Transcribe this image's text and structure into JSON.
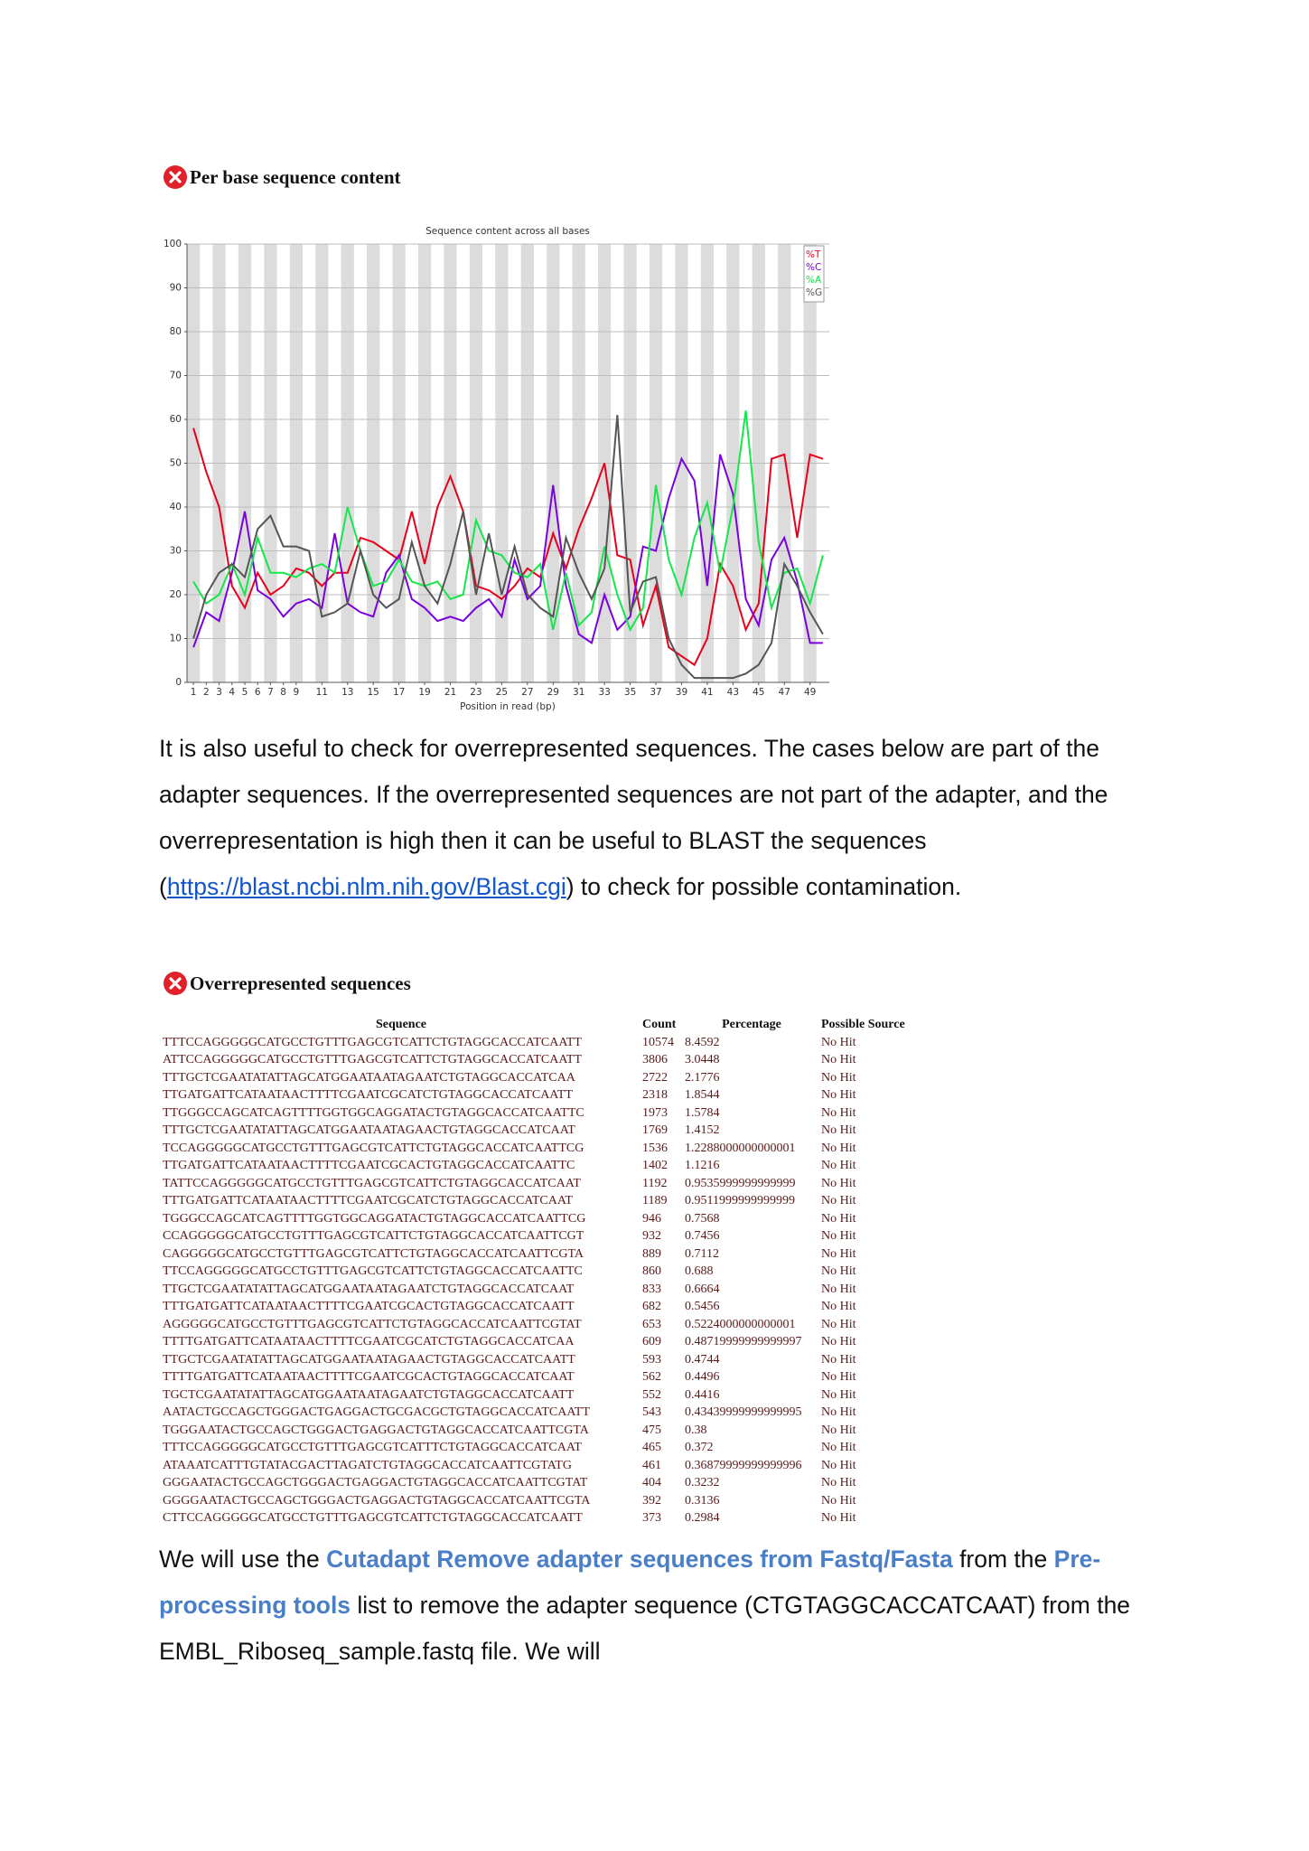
{
  "section1": {
    "title": "Per base sequence content"
  },
  "chart_data": {
    "type": "line",
    "title": "Sequence content across all bases",
    "x_label": "Position in read (bp)",
    "x": [
      1,
      2,
      3,
      4,
      5,
      6,
      7,
      8,
      9,
      10,
      11,
      12,
      13,
      14,
      15,
      16,
      17,
      18,
      19,
      20,
      21,
      22,
      23,
      24,
      25,
      26,
      27,
      28,
      29,
      30,
      31,
      32,
      33,
      34,
      35,
      36,
      37,
      38,
      39,
      40,
      41,
      42,
      43,
      44,
      45,
      46,
      47,
      48,
      49,
      50
    ],
    "xlim": [
      0.5,
      50.5
    ],
    "xticks": [
      1,
      2,
      3,
      4,
      5,
      6,
      7,
      8,
      9,
      11,
      13,
      15,
      17,
      19,
      21,
      23,
      25,
      27,
      29,
      31,
      33,
      35,
      37,
      39,
      41,
      43,
      45,
      47,
      49
    ],
    "ylim": [
      0,
      100
    ],
    "yticks": [
      0,
      10,
      20,
      30,
      40,
      50,
      60,
      70,
      80,
      90,
      100
    ],
    "grid": true,
    "legend": "upper right",
    "series": [
      {
        "name": "%T",
        "color": "#e8001c",
        "values": [
          58,
          48,
          40,
          22,
          17,
          25,
          20,
          22,
          26,
          25,
          22,
          25,
          25,
          33,
          32,
          30,
          28,
          39,
          27,
          40,
          47,
          39,
          22,
          21,
          19,
          22,
          26,
          24,
          34,
          26,
          35,
          42,
          50,
          29,
          28,
          13,
          22,
          8,
          6,
          4,
          10,
          27,
          22,
          12,
          18,
          51,
          52,
          33,
          52,
          51
        ]
      },
      {
        "name": "%C",
        "color": "#7a00e0",
        "values": [
          8,
          16,
          14,
          25,
          39,
          21,
          19,
          15,
          18,
          19,
          17,
          34,
          18,
          16,
          15,
          25,
          29,
          19,
          17,
          14,
          15,
          14,
          17,
          19,
          15,
          28,
          19,
          22,
          45,
          22,
          11,
          9,
          20,
          12,
          15,
          31,
          30,
          42,
          51,
          46,
          22,
          52,
          43,
          19,
          13,
          28,
          33,
          23,
          9,
          9
        ]
      },
      {
        "name": "%A",
        "color": "#13e84a",
        "values": [
          23,
          18,
          20,
          27,
          20,
          33,
          25,
          25,
          24,
          26,
          27,
          25,
          40,
          30,
          22,
          23,
          28,
          23,
          22,
          23,
          19,
          20,
          37,
          30,
          29,
          25,
          24,
          27,
          12,
          25,
          13,
          16,
          31,
          20,
          12,
          17,
          45,
          28,
          20,
          33,
          41,
          25,
          40,
          62,
          32,
          17,
          25,
          26,
          18,
          29
        ]
      },
      {
        "name": "%G",
        "color": "#555555",
        "values": [
          10,
          20,
          25,
          27,
          24,
          35,
          38,
          31,
          31,
          30,
          15,
          16,
          18,
          30,
          20,
          17,
          19,
          32,
          22,
          18,
          27,
          39,
          20,
          34,
          20,
          31,
          20,
          17,
          15,
          33,
          25,
          19,
          26,
          61,
          16,
          23,
          24,
          10,
          4,
          1,
          1,
          1,
          1,
          2,
          4,
          9,
          27,
          22,
          16,
          11
        ]
      }
    ]
  },
  "paragraph1": {
    "before": "It is also useful to check for overrepresented sequences. The cases below are part of the adapter sequences. If the overrepresented sequences are not part of the adapter, and the overrepresentation is high then it can be useful to BLAST the sequences (",
    "link": "https://blast.ncbi.nlm.nih.gov/Blast.cgi",
    "after": ") to check for possible contamination."
  },
  "section2": {
    "title": "Overrepresented sequences"
  },
  "table": {
    "header": [
      "Sequence",
      "Count",
      "Percentage",
      "Possible Source"
    ],
    "rows": [
      [
        "TTTCCAGGGGGCATGCCTGTTTGAGCGTCATTCTGTAGGCACCATCAATT",
        "10574",
        "8.4592",
        "No Hit"
      ],
      [
        "ATTCCAGGGGGCATGCCTGTTTGAGCGTCATTCTGTAGGCACCATCAATT",
        "3806",
        "3.0448",
        "No Hit"
      ],
      [
        "TTTGCTCGAATATATTAGCATGGAATAATAGAATCTGTAGGCACCATCAA",
        "2722",
        "2.1776",
        "No Hit"
      ],
      [
        "TTGATGATTCATAATAACTTTTCGAATCGCATCTGTAGGCACCATCAATT",
        "2318",
        "1.8544",
        "No Hit"
      ],
      [
        "TTGGGCCAGCATCAGTTTTGGTGGCAGGATACTGTAGGCACCATCAATTC",
        "1973",
        "1.5784",
        "No Hit"
      ],
      [
        "TTTGCTCGAATATATTAGCATGGAATAATAGAACTGTAGGCACCATCAAT",
        "1769",
        "1.4152",
        "No Hit"
      ],
      [
        "TCCAGGGGGCATGCCTGTTTGAGCGTCATTCTGTAGGCACCATCAATTCG",
        "1536",
        "1.2288000000000001",
        "No Hit"
      ],
      [
        "TTGATGATTCATAATAACTTTTCGAATCGCACTGTAGGCACCATCAATTC",
        "1402",
        "1.1216",
        "No Hit"
      ],
      [
        "TATTCCAGGGGGCATGCCTGTTTGAGCGTCATTCTGTAGGCACCATCAAT",
        "1192",
        "0.9535999999999999",
        "No Hit"
      ],
      [
        "TTTGATGATTCATAATAACTTTTCGAATCGCATCTGTAGGCACCATCAAT",
        "1189",
        "0.9511999999999999",
        "No Hit"
      ],
      [
        "TGGGCCAGCATCAGTTTTGGTGGCAGGATACTGTAGGCACCATCAATTCG",
        "946",
        "0.7568",
        "No Hit"
      ],
      [
        "CCAGGGGGCATGCCTGTTTGAGCGTCATTCTGTAGGCACCATCAATTCGT",
        "932",
        "0.7456",
        "No Hit"
      ],
      [
        "CAGGGGGCATGCCTGTTTGAGCGTCATTCTGTAGGCACCATCAATTCGTA",
        "889",
        "0.7112",
        "No Hit"
      ],
      [
        "TTCCAGGGGGCATGCCTGTTTGAGCGTCATTCTGTAGGCACCATCAATTC",
        "860",
        "0.688",
        "No Hit"
      ],
      [
        "TTGCTCGAATATATTAGCATGGAATAATAGAATCTGTAGGCACCATCAAT",
        "833",
        "0.6664",
        "No Hit"
      ],
      [
        "TTTGATGATTCATAATAACTTTTCGAATCGCACTGTAGGCACCATCAATT",
        "682",
        "0.5456",
        "No Hit"
      ],
      [
        "AGGGGGCATGCCTGTTTGAGCGTCATTCTGTAGGCACCATCAATTCGTAT",
        "653",
        "0.5224000000000001",
        "No Hit"
      ],
      [
        "TTTTGATGATTCATAATAACTTTTCGAATCGCATCTGTAGGCACCATCAA",
        "609",
        "0.48719999999999997",
        "No Hit"
      ],
      [
        "TTGCTCGAATATATTAGCATGGAATAATAGAACTGTAGGCACCATCAATT",
        "593",
        "0.4744",
        "No Hit"
      ],
      [
        "TTTTGATGATTCATAATAACTTTTCGAATCGCACTGTAGGCACCATCAAT",
        "562",
        "0.4496",
        "No Hit"
      ],
      [
        "TGCTCGAATATATTAGCATGGAATAATAGAATCTGTAGGCACCATCAATT",
        "552",
        "0.4416",
        "No Hit"
      ],
      [
        "AATACTGCCAGCTGGGACTGAGGACTGCGACGCTGTAGGCACCATCAATT",
        "543",
        "0.43439999999999995",
        "No Hit"
      ],
      [
        "TGGGAATACTGCCAGCTGGGACTGAGGACTGTAGGCACCATCAATTCGTA",
        "475",
        "0.38",
        "No Hit"
      ],
      [
        "TTTCCAGGGGGCATGCCTGTTTGAGCGTCATTTCTGTAGGCACCATCAAT",
        "465",
        "0.372",
        "No Hit"
      ],
      [
        "ATAAATCATTTGTATACGACTTAGATCTGTAGGCACCATCAATTCGTATG",
        "461",
        "0.36879999999999996",
        "No Hit"
      ],
      [
        "GGGAATACTGCCAGCTGGGACTGAGGACTGTAGGCACCATCAATTCGTAT",
        "404",
        "0.3232",
        "No Hit"
      ],
      [
        "GGGGAATACTGCCAGCTGGGACTGAGGACTGTAGGCACCATCAATTCGTA",
        "392",
        "0.3136",
        "No Hit"
      ],
      [
        "CTTCCAGGGGGCATGCCTGTTTGAGCGTCATTCTGTAGGCACCATCAATT",
        "373",
        "0.2984",
        "No Hit"
      ]
    ]
  },
  "paragraph2": {
    "part1": "We will use the ",
    "tool": "Cutadapt Remove adapter sequences from Fastq/Fasta",
    "part2": " from the ",
    "list": "Pre-processing tools",
    "part3": " list to remove the adapter sequence (CTGTAGGCACCATCAAT) from the EMBL_Riboseq_sample.fastq file. We will"
  }
}
